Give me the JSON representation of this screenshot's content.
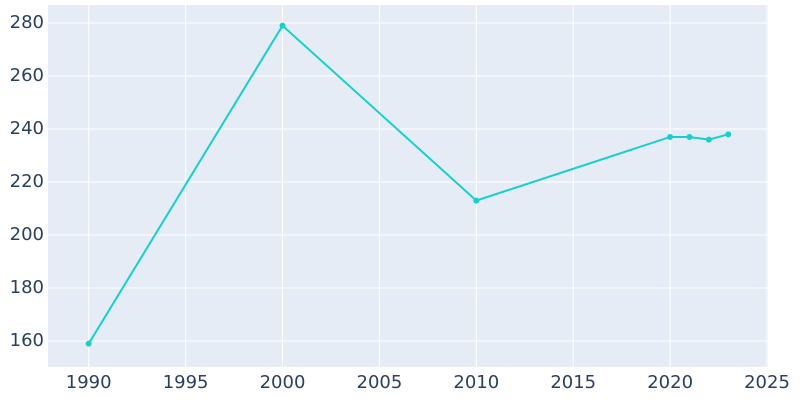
{
  "chart_data": {
    "type": "line",
    "x": [
      1990,
      2000,
      2010,
      2020,
      2021,
      2022,
      2023
    ],
    "series": [
      {
        "color": "#17cfcb",
        "values": [
          159,
          279,
          213,
          237,
          237,
          236,
          238
        ]
      }
    ],
    "xlim": [
      1987.9,
      2025.05
    ],
    "xticks": [
      1990,
      1995,
      2000,
      2005,
      2010,
      2015,
      2020,
      2025
    ],
    "ylim": [
      150.2,
      286.8
    ],
    "yticks": [
      160,
      180,
      200,
      220,
      240,
      260,
      280
    ],
    "grid": true
  }
}
